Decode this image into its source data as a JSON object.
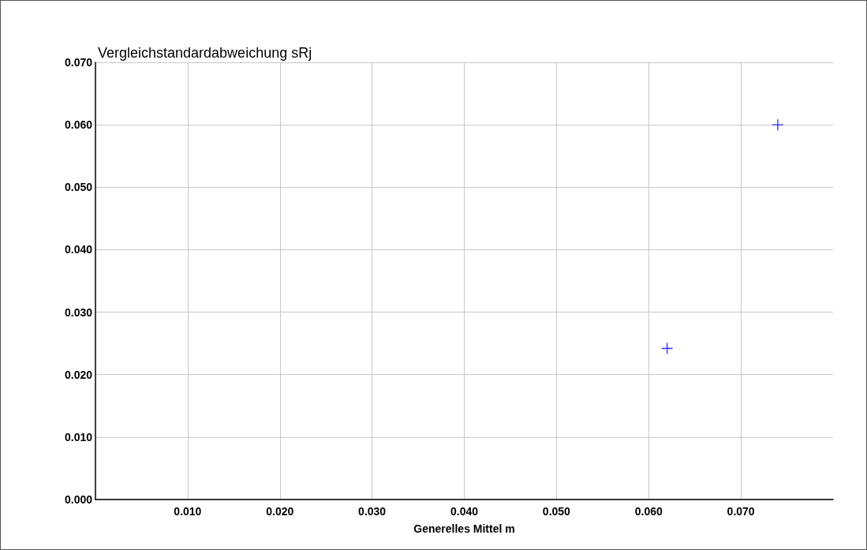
{
  "chart_data": {
    "type": "scatter",
    "title": "Vergleichstandardabweichung sRj",
    "xlabel": "Generelles Mittel m",
    "series": [
      {
        "color": "#0000ff",
        "x": [
          0.062,
          0.074
        ],
        "values": [
          0.0242,
          0.06
        ]
      }
    ],
    "xlim": [
      0,
      0.08
    ],
    "xticks": [
      {
        "value": 0.01,
        "label": "0.010"
      },
      {
        "value": 0.02,
        "label": "0.020"
      },
      {
        "value": 0.03,
        "label": "0.030"
      },
      {
        "value": 0.04,
        "label": "0.040"
      },
      {
        "value": 0.05,
        "label": "0.050"
      },
      {
        "value": 0.06,
        "label": "0.060"
      },
      {
        "value": 0.07,
        "label": "0.070"
      }
    ],
    "ylim": [
      0,
      0.07
    ],
    "yticks": [
      {
        "value": 0,
        "label": "0.000"
      },
      {
        "value": 0.01,
        "label": "0.010"
      },
      {
        "value": 0.02,
        "label": "0.020"
      },
      {
        "value": 0.03,
        "label": "0.030"
      },
      {
        "value": 0.04,
        "label": "0.040"
      },
      {
        "value": 0.05,
        "label": "0.050"
      },
      {
        "value": 0.06,
        "label": "0.060"
      },
      {
        "value": 0.07,
        "label": "0.070"
      }
    ],
    "grid": true,
    "marker": "cross"
  }
}
